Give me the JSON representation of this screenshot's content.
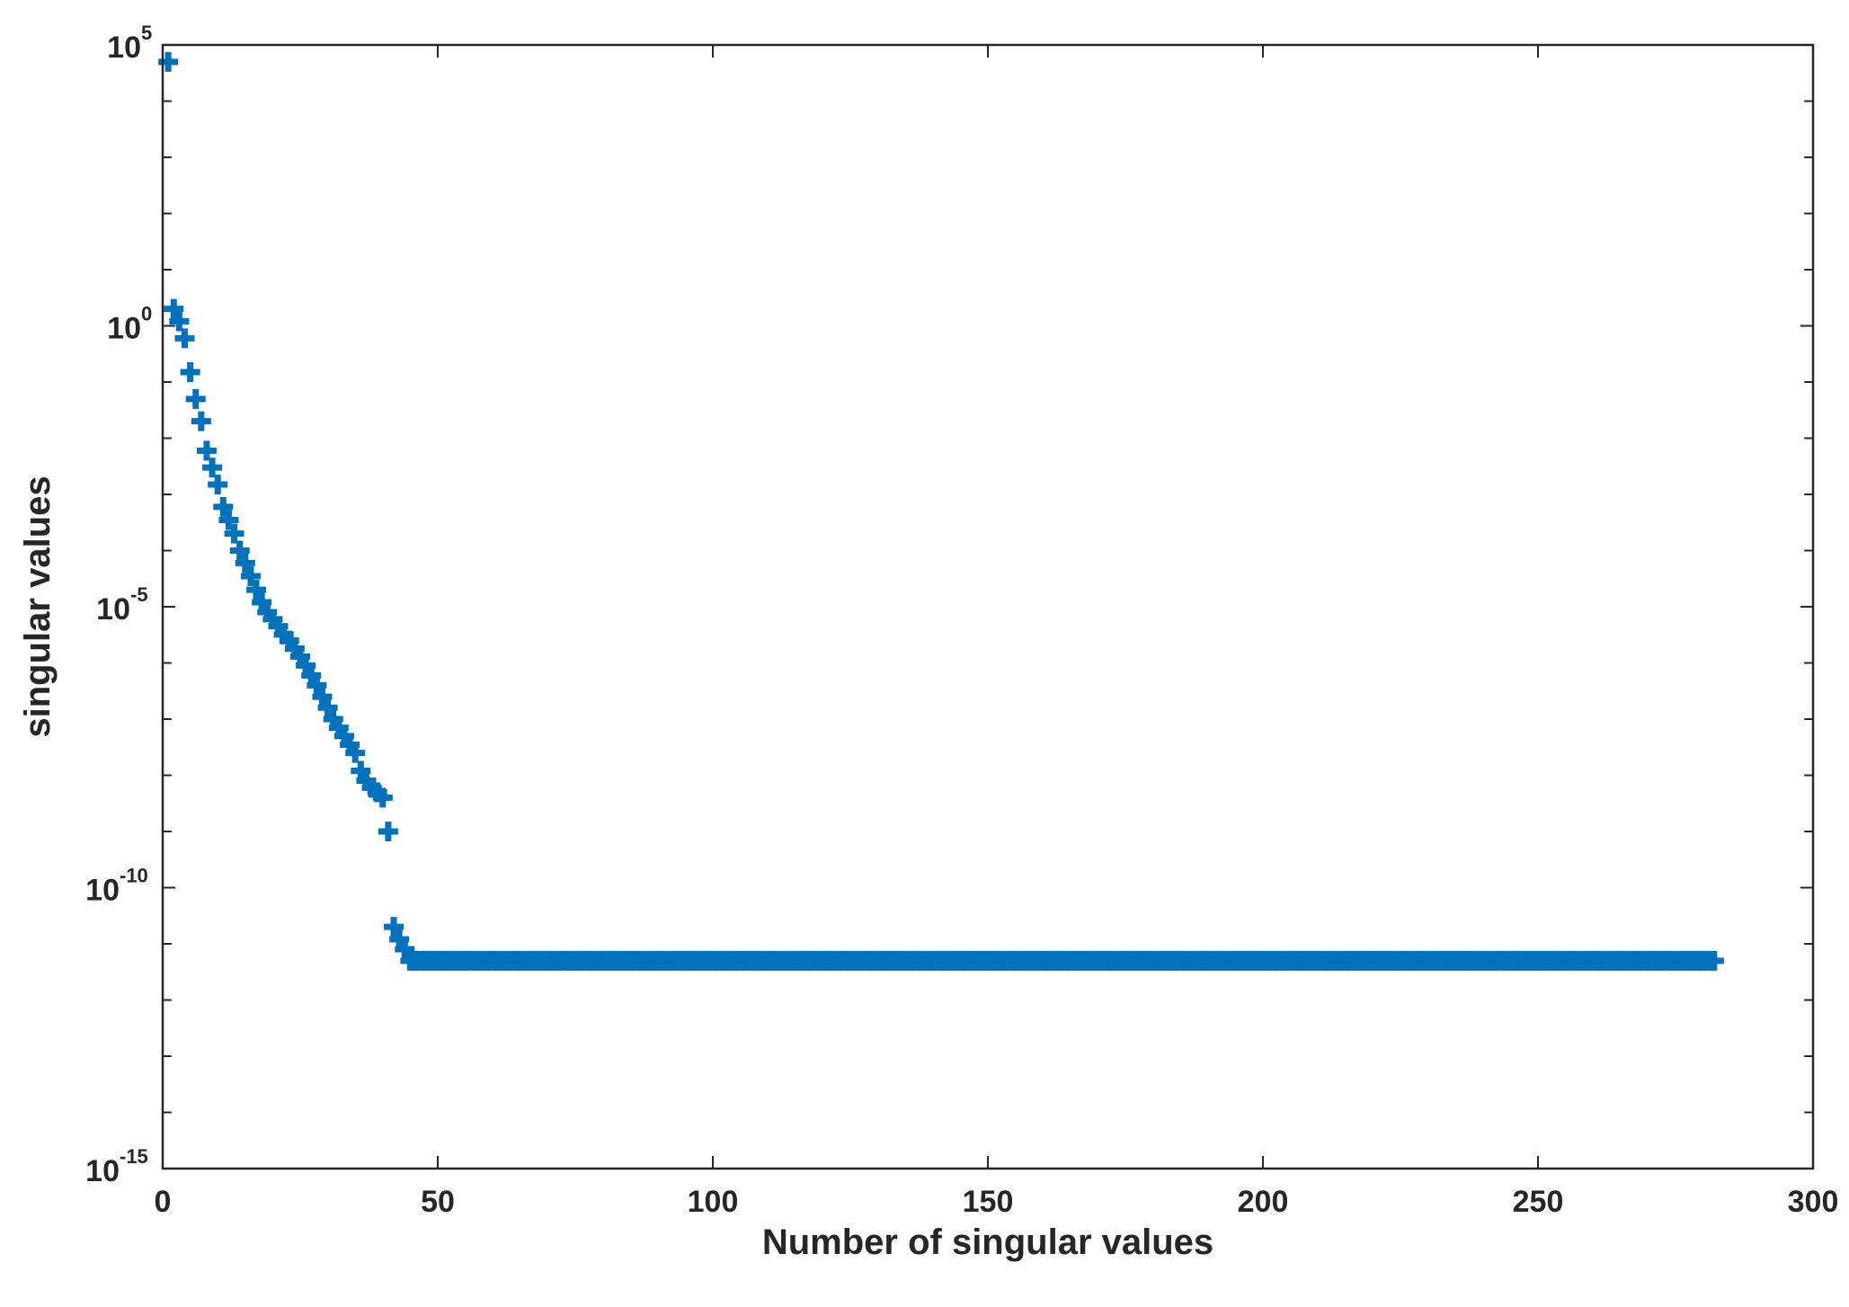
{
  "chart_data": {
    "type": "scatter",
    "title": "",
    "xlabel": "Number of singular values",
    "ylabel": "singular values",
    "xlim": [
      0,
      300
    ],
    "ylim": [
      1e-15,
      100000.0
    ],
    "yscale": "log",
    "grid": false,
    "marker": "plus",
    "color": "#0072BD",
    "x_ticks": [
      {
        "value": 0,
        "label": "0"
      },
      {
        "value": 50,
        "label": "50"
      },
      {
        "value": 100,
        "label": "100"
      },
      {
        "value": 150,
        "label": "150"
      },
      {
        "value": 200,
        "label": "200"
      },
      {
        "value": 250,
        "label": "250"
      },
      {
        "value": 300,
        "label": "300"
      }
    ],
    "y_ticks": [
      {
        "value": 100000.0,
        "base": "10",
        "exp": "5"
      },
      {
        "value": 1.0,
        "base": "10",
        "exp": "0"
      },
      {
        "value": 1e-05,
        "base": "10",
        "exp": "-5"
      },
      {
        "value": 1e-10,
        "base": "10",
        "exp": "-10"
      },
      {
        "value": 1e-15,
        "base": "10",
        "exp": "-15"
      }
    ],
    "series": [
      {
        "x": [
          1,
          2,
          3,
          4,
          5,
          6,
          7,
          8,
          9,
          10,
          11,
          12,
          13,
          14,
          15,
          16,
          17,
          18,
          19,
          20,
          21,
          22,
          23,
          24,
          25,
          26,
          27,
          28,
          29,
          30,
          31,
          32,
          33,
          34,
          35,
          36,
          37,
          38,
          39,
          40,
          41,
          42,
          43,
          44
        ],
        "y": [
          50000,
          2.0,
          1.2,
          0.6,
          0.15,
          0.05,
          0.02,
          0.006,
          0.003,
          0.0015,
          0.0006,
          0.00035,
          0.0002,
          0.0001,
          6e-05,
          3.5e-05,
          2e-05,
          1.2e-05,
          8e-06,
          6e-06,
          4.5e-06,
          3.2e-06,
          2.5e-06,
          1.8e-06,
          1.3e-06,
          9e-07,
          6e-07,
          4e-07,
          2.5e-07,
          1.6e-07,
          1e-07,
          7e-08,
          5e-08,
          3.5e-08,
          2.5e-08,
          1.2e-08,
          8e-09,
          6e-09,
          5e-09,
          4e-09,
          1e-09,
          2e-11,
          1.2e-11,
          8e-12
        ]
      },
      {
        "x_start": 45,
        "x_end": 282,
        "x_step": 1,
        "y_constant": 5e-12
      }
    ]
  }
}
